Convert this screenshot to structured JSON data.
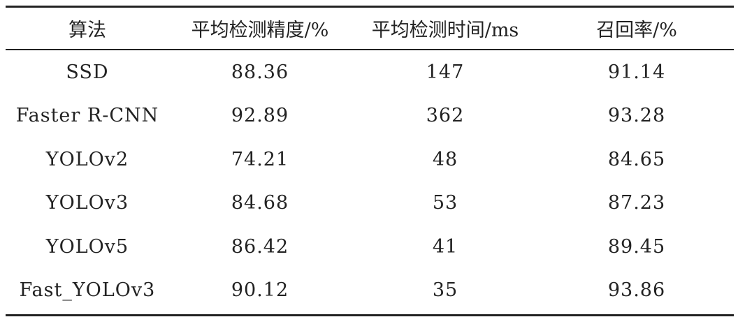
{
  "table": {
    "headers": [
      "算法",
      "平均检测精度/%",
      "平均检测时间/ms",
      "召回率/%"
    ],
    "rows": [
      [
        "SSD",
        "88.36",
        "147",
        "91.14"
      ],
      [
        "Faster R-CNN",
        "92.89",
        "362",
        "93.28"
      ],
      [
        "YOLOv2",
        "74.21",
        "48",
        "84.65"
      ],
      [
        "YOLOv3",
        "84.68",
        "53",
        "87.23"
      ],
      [
        "YOLOv5",
        "86.42",
        "41",
        "89.45"
      ],
      [
        "Fast_YOLOv3",
        "90.12",
        "35",
        "93.86"
      ]
    ]
  }
}
